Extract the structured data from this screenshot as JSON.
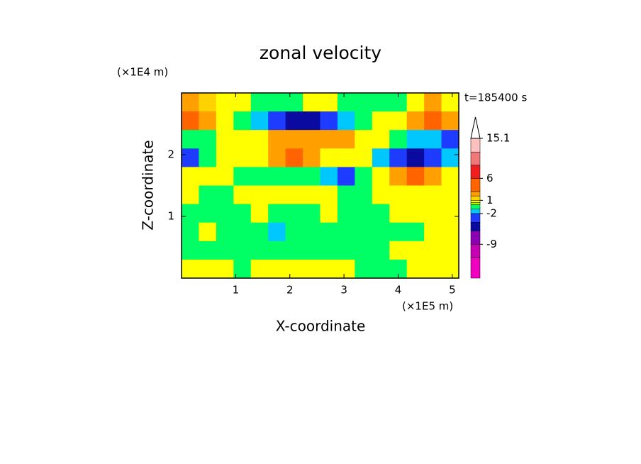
{
  "chart_data": {
    "type": "contour",
    "title": "zonal velocity",
    "annotation": "t=185400 s",
    "xlabel": "X-coordinate",
    "ylabel": "Z-coordinate",
    "xunit": "(×1E5 m)",
    "yunit": "(×1E4 m)",
    "xlim": [
      0,
      5.12
    ],
    "ylim": [
      0,
      3.0
    ],
    "xticks": [
      1,
      2,
      3,
      4,
      5
    ],
    "yticks": [
      1,
      2
    ],
    "x": [
      0.16,
      0.48,
      0.8,
      1.12,
      1.44,
      1.76,
      2.08,
      2.4,
      2.72,
      3.04,
      3.36,
      3.68,
      4.0,
      4.32,
      4.64,
      4.96
    ],
    "y": [
      2.85,
      2.55,
      2.25,
      1.95,
      1.65,
      1.35,
      1.05,
      0.75,
      0.45,
      0.15
    ],
    "z": [
      [
        2.5,
        1.5,
        0.7,
        0.7,
        -0.5,
        -0.5,
        -0.5,
        0.7,
        0.7,
        -0.5,
        -0.5,
        -0.5,
        -0.5,
        0.7,
        2.5,
        0.7
      ],
      [
        4,
        2.5,
        0.7,
        -0.5,
        -1.5,
        -3,
        -5,
        -5,
        -3,
        -1.5,
        -0.5,
        0.7,
        0.7,
        2.5,
        4,
        2.5
      ],
      [
        -0.5,
        -0.5,
        0.7,
        0.7,
        0.7,
        2.5,
        2.5,
        2.5,
        2.5,
        2.5,
        0.7,
        0.7,
        -0.5,
        -1.5,
        -1.5,
        -3
      ],
      [
        -3,
        -0.5,
        0.7,
        0.7,
        0.7,
        2.5,
        4,
        2.5,
        0.7,
        0.7,
        0.7,
        -1.5,
        -3,
        -5,
        -3,
        -1.5
      ],
      [
        0.7,
        0.7,
        0.7,
        -0.5,
        -0.5,
        -0.5,
        -0.5,
        -0.5,
        -1.5,
        -3,
        -0.5,
        0.7,
        2.5,
        4,
        2.5,
        0.7
      ],
      [
        0.7,
        -0.5,
        -0.5,
        0.7,
        0.7,
        0.7,
        0.7,
        0.7,
        0.7,
        -0.5,
        -0.5,
        0.7,
        0.7,
        0.7,
        0.7,
        0.7
      ],
      [
        -0.5,
        -0.5,
        -0.5,
        -0.5,
        0.7,
        -0.5,
        -0.5,
        -0.5,
        0.7,
        -0.5,
        -0.5,
        -0.5,
        0.7,
        0.7,
        0.7,
        0.7
      ],
      [
        -0.5,
        0.7,
        -0.5,
        -0.5,
        -0.5,
        -1.5,
        -0.5,
        -0.5,
        -0.5,
        -0.5,
        -0.5,
        -0.5,
        -0.5,
        -0.5,
        0.7,
        0.7
      ],
      [
        -0.5,
        -0.5,
        -0.5,
        -0.5,
        -0.5,
        -0.5,
        -0.5,
        -0.5,
        -0.5,
        -0.5,
        -0.5,
        -0.5,
        0.7,
        0.7,
        0.7,
        0.7
      ],
      [
        0.7,
        0.7,
        0.7,
        -0.5,
        0.7,
        0.7,
        0.7,
        0.7,
        0.7,
        0.7,
        -0.5,
        -0.5,
        -0.5,
        0.7,
        0.7,
        0.7
      ]
    ],
    "colorbar": {
      "lim": [
        -16.7,
        15.1
      ],
      "levels": [
        -16.7,
        -12,
        -9,
        -6,
        -4,
        -2,
        -1,
        0,
        0.5,
        1,
        2,
        3,
        6,
        9,
        12,
        15.1
      ],
      "colors": [
        "#f000c0",
        "#c800b4",
        "#8c00b4",
        "#0a0aa0",
        "#1e3cff",
        "#00c8ff",
        "#00ff64",
        "#b4ff00",
        "#ffff00",
        "#ffd200",
        "#ffa000",
        "#ff6400",
        "#f01e1e",
        "#f07878",
        "#ffc0c0"
      ],
      "extend_color": "#ffffff",
      "ticks": [
        -9,
        -2,
        1,
        6,
        15.1
      ]
    }
  }
}
